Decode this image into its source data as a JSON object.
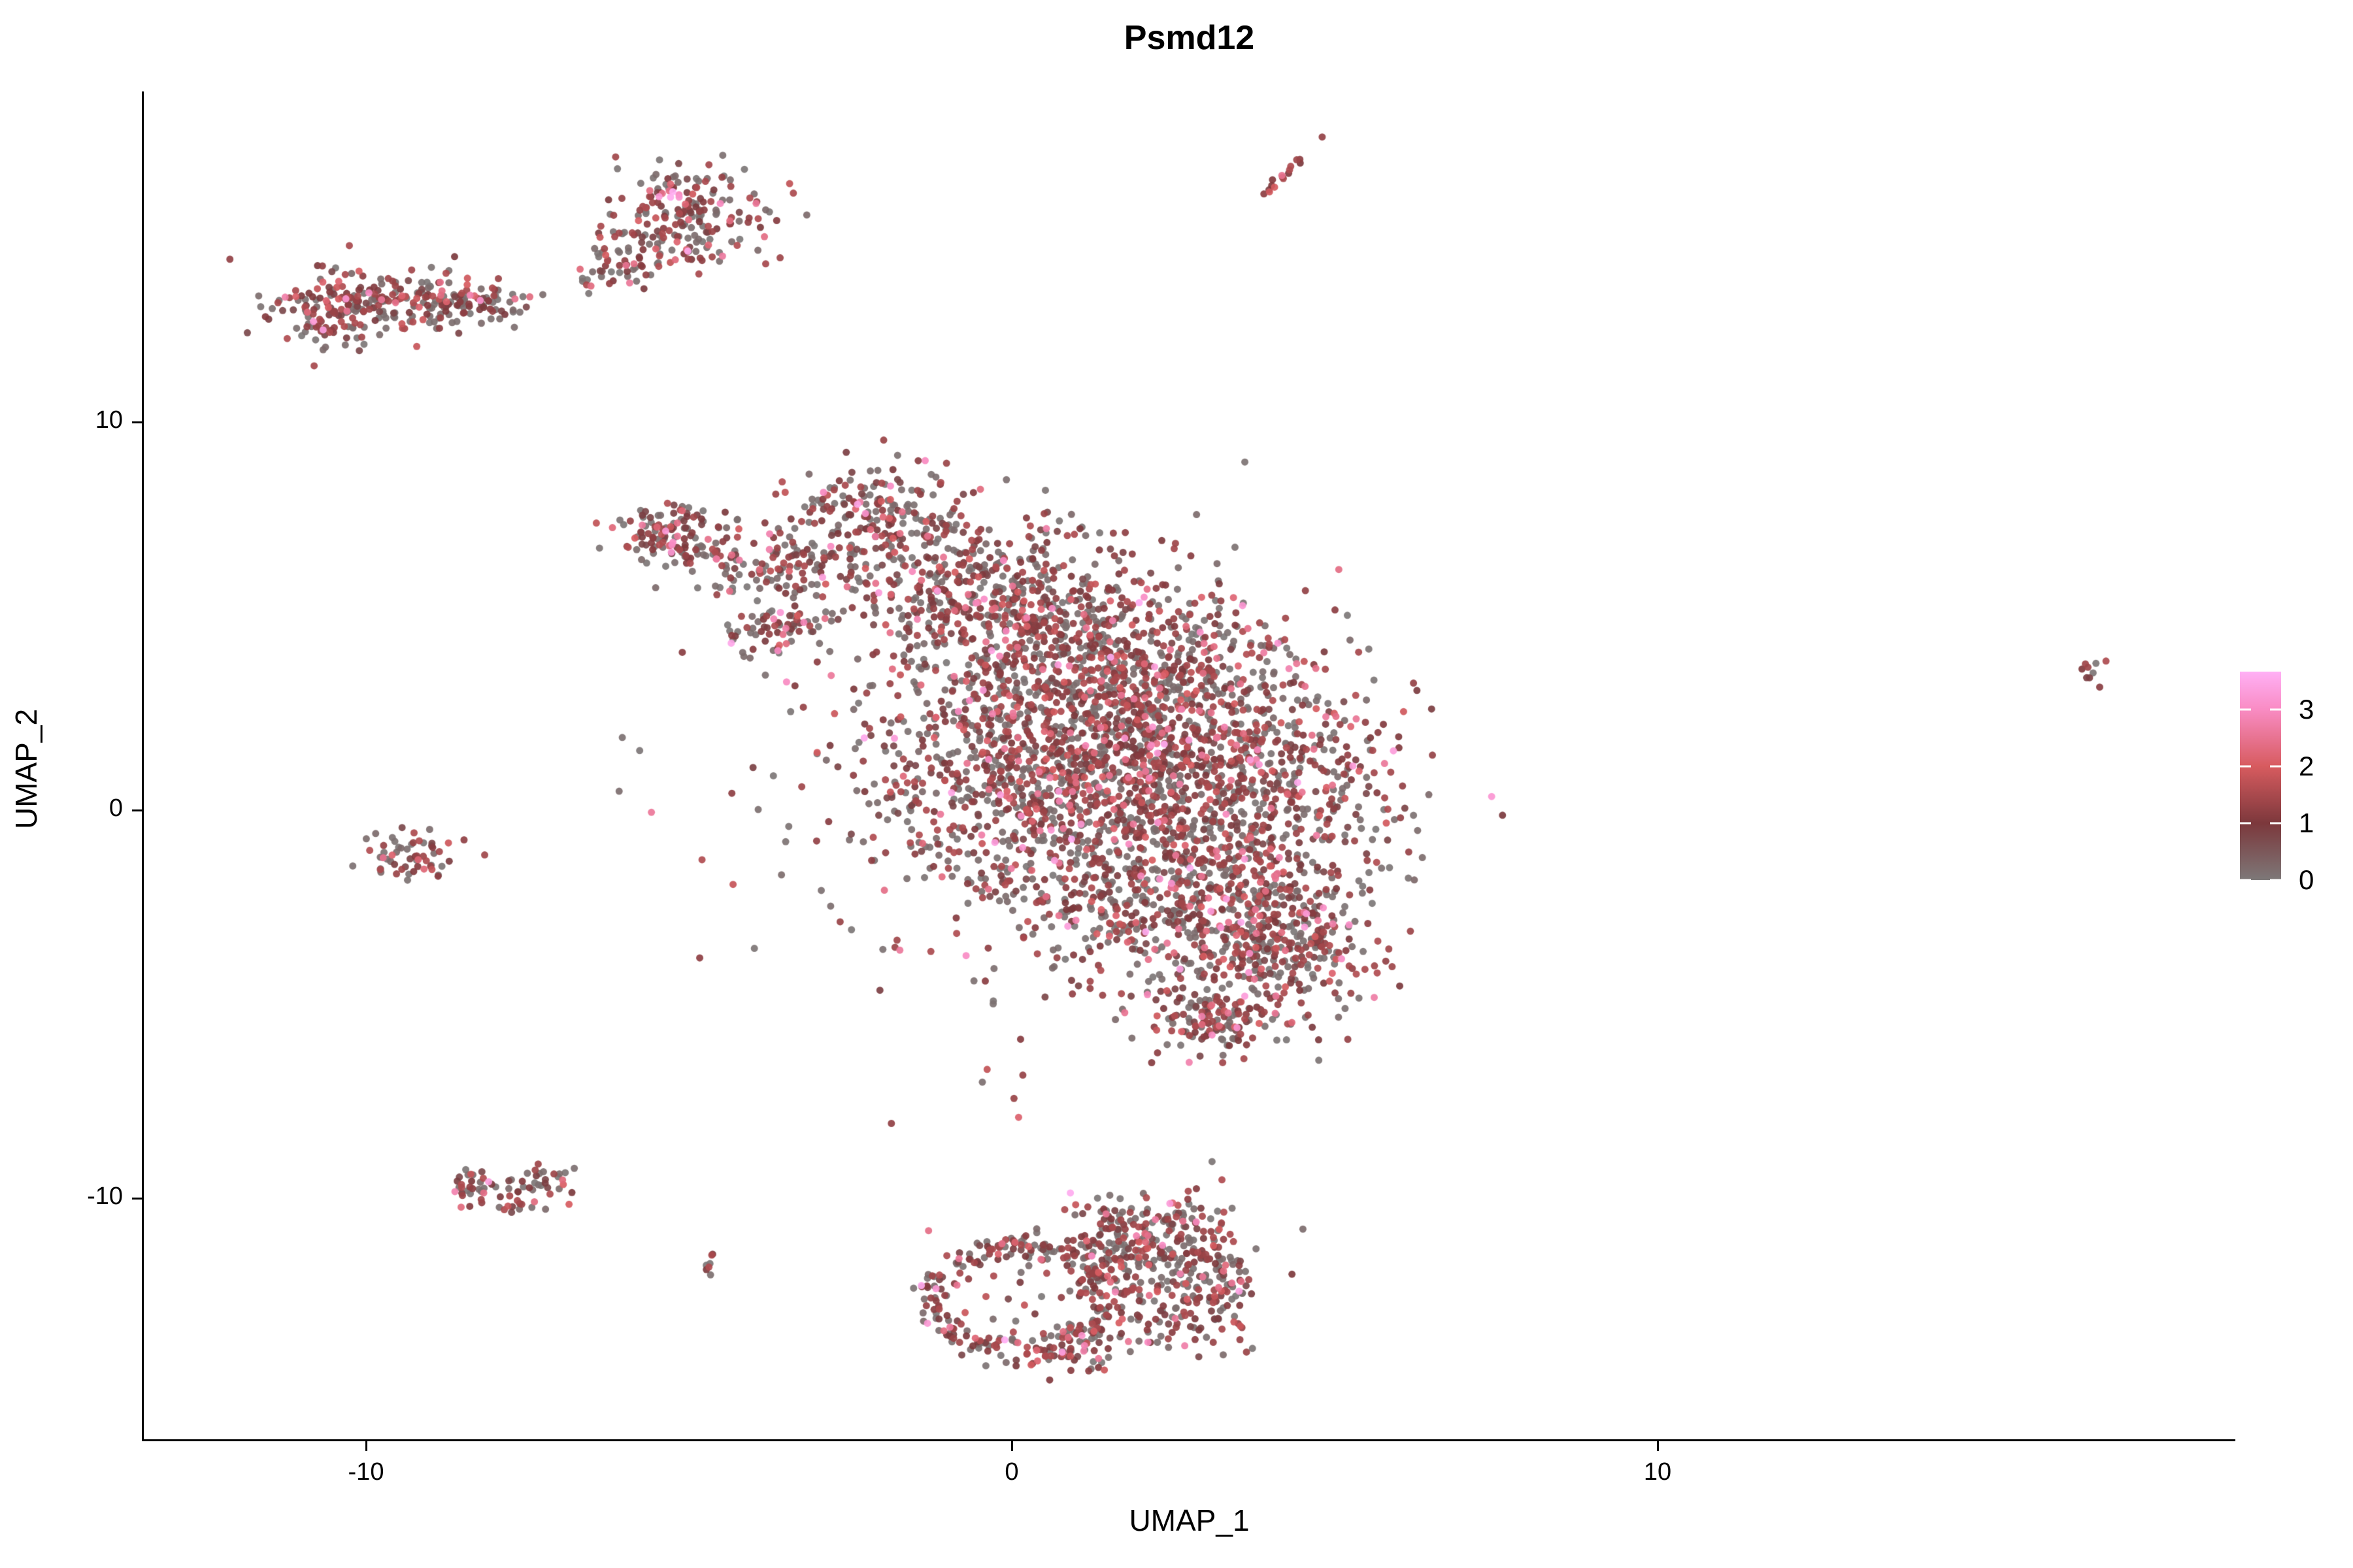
{
  "title": "Psmd12",
  "axes": {
    "x_label": "UMAP_1",
    "y_label": "UMAP_2",
    "x_tick_labels": [
      "-10",
      "0",
      "10"
    ],
    "y_tick_labels": [
      "10",
      "0",
      "-10"
    ]
  },
  "legend_labels": [
    "3",
    "2",
    "1",
    "0"
  ],
  "chart_data": {
    "type": "scatter",
    "title": "Psmd12",
    "xlabel": "UMAP_1",
    "ylabel": "UMAP_2",
    "x_ticks": [
      -10,
      0,
      10
    ],
    "y_ticks": [
      -10,
      0,
      10
    ],
    "xlim": [
      -13.5,
      19.0
    ],
    "ylim": [
      -17.9,
      17.9
    ],
    "grid": false,
    "legend_position": "right",
    "colorbar": {
      "ticks": [
        0,
        1,
        2,
        3
      ],
      "max_value": 3.66,
      "stops": [
        {
          "v": 0,
          "color": "#7D7878"
        },
        {
          "v": 1,
          "color": "#7C383C"
        },
        {
          "v": 2,
          "color": "#D75B5F"
        },
        {
          "v": 3,
          "color": "#F98CC4"
        },
        {
          "v": 3.66,
          "color": "#FFB0F5"
        }
      ]
    },
    "point_radius_px": 5.5,
    "point_alpha": 0.92,
    "default_expression_mix": [
      [
        0.42,
        0.0,
        0.25
      ],
      [
        0.46,
        0.7,
        1.6
      ],
      [
        0.09,
        1.7,
        2.6
      ],
      [
        0.025,
        2.6,
        3.3
      ],
      [
        0.005,
        3.3,
        3.66
      ]
    ],
    "clusters": [
      {
        "name": "top-left-a",
        "shape": "gauss",
        "center": [
          -10.4,
          12.96
        ],
        "sigma": [
          0.56,
          0.51
        ],
        "rot_deg": 5,
        "n": 150
      },
      {
        "name": "top-left-b",
        "shape": "gauss",
        "center": [
          -9.19,
          13.13
        ],
        "sigma": [
          0.61,
          0.37
        ],
        "rot_deg": -5,
        "n": 110
      },
      {
        "name": "top-left-c",
        "shape": "gauss",
        "center": [
          -8.23,
          13.05
        ],
        "sigma": [
          0.4,
          0.27
        ],
        "rot_deg": 0,
        "n": 55
      },
      {
        "name": "top-mid-a",
        "shape": "gauss",
        "center": [
          -5.09,
          15.32
        ],
        "sigma": [
          0.66,
          0.6
        ],
        "rot_deg": 30,
        "n": 200
      },
      {
        "name": "top-mid-b",
        "shape": "gauss",
        "center": [
          -6.0,
          14.14
        ],
        "sigma": [
          0.35,
          0.34
        ],
        "rot_deg": 0,
        "n": 45
      },
      {
        "name": "top-mid-tail",
        "shape": "gauss",
        "center": [
          -6.51,
          13.6
        ],
        "sigma": [
          0.12,
          0.12
        ],
        "rot_deg": 0,
        "n": 6
      },
      {
        "name": "top-streak",
        "shape": "gauss",
        "center": [
          4.19,
          16.38
        ],
        "sigma": [
          0.55,
          0.06
        ],
        "rot_deg": 58,
        "n": 16,
        "expression_mix": [
          [
            0.1,
            0.0,
            0.25
          ],
          [
            0.72,
            0.8,
            1.6
          ],
          [
            0.18,
            1.8,
            2.6
          ]
        ]
      },
      {
        "name": "main-arm-blob",
        "shape": "gauss",
        "center": [
          -5.24,
          7.15
        ],
        "sigma": [
          0.43,
          0.44
        ],
        "rot_deg": 0,
        "n": 120
      },
      {
        "name": "main-arm",
        "shape": "gauss",
        "center": [
          -3.88,
          6.36
        ],
        "sigma": [
          0.66,
          0.4
        ],
        "rot_deg": -20,
        "n": 100
      },
      {
        "name": "main-strip",
        "shape": "gauss",
        "center": [
          -3.57,
          4.63
        ],
        "sigma": [
          0.56,
          0.3
        ],
        "rot_deg": 35,
        "n": 70
      },
      {
        "name": "main-top",
        "shape": "gauss",
        "center": [
          -2.21,
          7.58
        ],
        "sigma": [
          0.71,
          0.76
        ],
        "rot_deg": 0,
        "n": 180
      },
      {
        "name": "main-band-1",
        "shape": "gauss",
        "center": [
          -0.49,
          5.72
        ],
        "sigma": [
          1.11,
          1.01
        ],
        "rot_deg": -22,
        "n": 420
      },
      {
        "name": "main-band-2",
        "shape": "gauss",
        "center": [
          1.54,
          3.54
        ],
        "sigma": [
          1.52,
          1.35
        ],
        "rot_deg": -25,
        "n": 800
      },
      {
        "name": "main-core-l",
        "shape": "gauss",
        "center": [
          0.53,
          1.01
        ],
        "sigma": [
          1.42,
          1.52
        ],
        "rot_deg": 0,
        "n": 700
      },
      {
        "name": "main-core-r",
        "shape": "gauss",
        "center": [
          3.26,
          0.67
        ],
        "sigma": [
          1.32,
          1.52
        ],
        "rot_deg": 0,
        "n": 800
      },
      {
        "name": "main-lower",
        "shape": "gauss",
        "center": [
          2.04,
          -2.36
        ],
        "sigma": [
          1.32,
          1.18
        ],
        "rot_deg": 0,
        "n": 450
      },
      {
        "name": "main-lobe",
        "shape": "gauss",
        "center": [
          4.07,
          -3.37
        ],
        "sigma": [
          0.81,
          1.01
        ],
        "rot_deg": 0,
        "n": 350
      },
      {
        "name": "main-tip",
        "shape": "gauss",
        "center": [
          3.11,
          -5.39
        ],
        "sigma": [
          0.46,
          0.47
        ],
        "rot_deg": 0,
        "n": 130
      },
      {
        "name": "main-halo",
        "shape": "gauss",
        "center": [
          -0.49,
          1.52
        ],
        "sigma": [
          2.02,
          2.69
        ],
        "rot_deg": 0,
        "n": 250
      },
      {
        "name": "below-main-sparse",
        "shape": "gauss",
        "center": [
          0.0,
          -7.2
        ],
        "sigma": [
          0.5,
          0.9
        ],
        "rot_deg": 0,
        "n": 5
      },
      {
        "name": "left-small",
        "shape": "gauss",
        "center": [
          -9.34,
          -1.18
        ],
        "sigma": [
          0.46,
          0.37
        ],
        "rot_deg": 0,
        "n": 60
      },
      {
        "name": "bottomleft-a",
        "shape": "gauss",
        "center": [
          -8.28,
          -9.68
        ],
        "sigma": [
          0.28,
          0.27
        ],
        "rot_deg": 0,
        "n": 32
      },
      {
        "name": "bottomleft-b",
        "shape": "gauss",
        "center": [
          -7.65,
          -9.93
        ],
        "sigma": [
          0.3,
          0.24
        ],
        "rot_deg": -15,
        "n": 26
      },
      {
        "name": "bottomleft-c",
        "shape": "gauss",
        "center": [
          -7.11,
          -9.53
        ],
        "sigma": [
          0.25,
          0.22
        ],
        "rot_deg": 15,
        "n": 20
      },
      {
        "name": "tiny-dot",
        "shape": "gauss",
        "center": [
          -4.69,
          -11.7
        ],
        "sigma": [
          0.12,
          0.17
        ],
        "rot_deg": 0,
        "n": 7,
        "expression_mix": [
          [
            0.3,
            0.0,
            0.25
          ],
          [
            0.55,
            0.8,
            1.6
          ],
          [
            0.15,
            1.9,
            2.4
          ]
        ]
      },
      {
        "name": "bottom-ring",
        "shape": "ring",
        "center": [
          0.15,
          -12.59
        ],
        "radius": [
          1.32,
          1.38
        ],
        "thickness": 0.12,
        "n": 230
      },
      {
        "name": "ring-interior",
        "shape": "gauss",
        "center": [
          0.15,
          -12.59
        ],
        "sigma": [
          0.6,
          0.6
        ],
        "rot_deg": 0,
        "n": 16
      },
      {
        "name": "bottom-right-a",
        "shape": "gauss",
        "center": [
          1.54,
          -11.36
        ],
        "sigma": [
          0.46,
          0.67
        ],
        "rot_deg": 0,
        "n": 120
      },
      {
        "name": "bottom-right-b",
        "shape": "gauss",
        "center": [
          2.45,
          -10.94
        ],
        "sigma": [
          0.61,
          0.51
        ],
        "rot_deg": -25,
        "n": 130
      },
      {
        "name": "bottom-right-c",
        "shape": "gauss",
        "center": [
          2.55,
          -12.63
        ],
        "sigma": [
          0.56,
          0.67
        ],
        "rot_deg": 0,
        "n": 120
      },
      {
        "name": "bottom-right-d",
        "shape": "gauss",
        "center": [
          3.21,
          -11.95
        ],
        "sigma": [
          0.3,
          0.76
        ],
        "rot_deg": 0,
        "n": 70
      },
      {
        "name": "bottom-bridge",
        "shape": "gauss",
        "center": [
          0.93,
          -13.8
        ],
        "sigma": [
          0.51,
          0.42
        ],
        "rot_deg": 0,
        "n": 60
      },
      {
        "name": "far-right",
        "shape": "gauss",
        "center": [
          16.79,
          3.57
        ],
        "sigma": [
          0.14,
          0.19
        ],
        "rot_deg": 0,
        "n": 9,
        "expression_mix": [
          [
            0.15,
            0.0,
            0.25
          ],
          [
            0.85,
            0.8,
            1.6
          ]
        ]
      }
    ]
  }
}
